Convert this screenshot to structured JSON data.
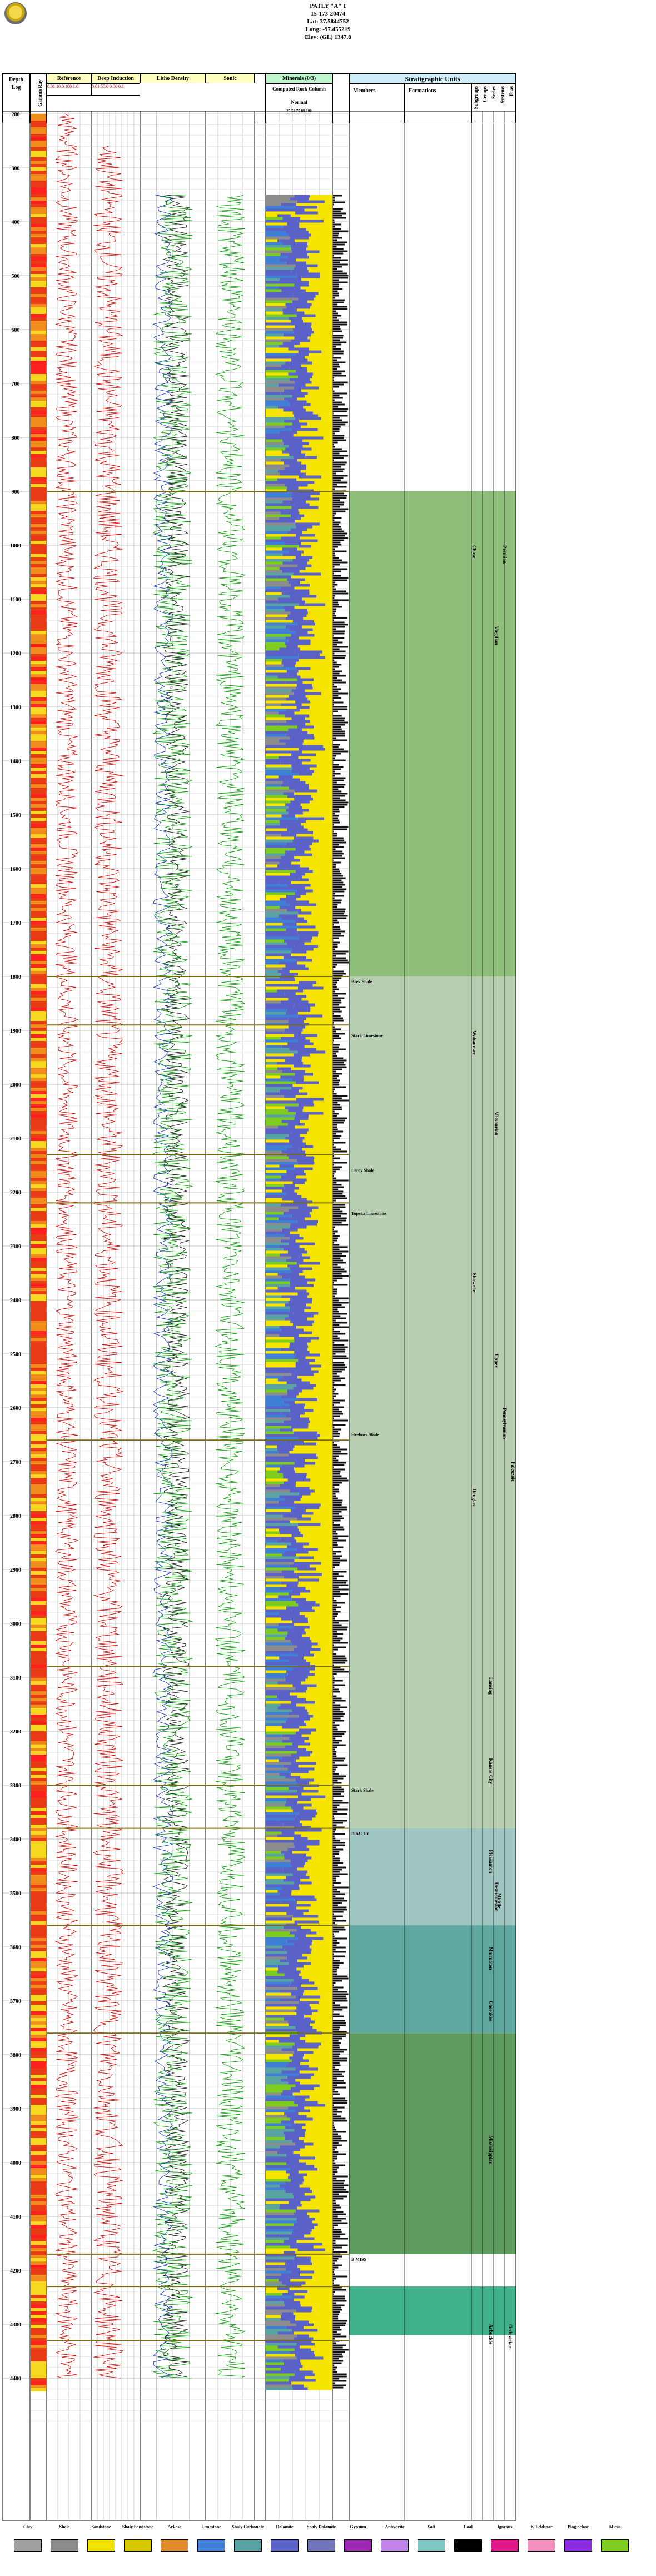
{
  "header": {
    "title": "PATLY \"A\" 1",
    "api": "15-173-20474",
    "lat": "Lat: 37.5844752",
    "long": "Long: -97.455219",
    "elev": "Elev: (GL) 1347.8"
  },
  "tracks": {
    "depth_label": "Depth",
    "log_label": "Log",
    "gamma_ray": "Gamma Ray",
    "reference": "Reference",
    "reference_units": "0.01    10.0    100    1.0",
    "deep_induction": "Deep Induction",
    "deep_induction_units": "0.01    50.0    0.00  0.1",
    "litho_density": "Litho Density",
    "sonic": "Sonic",
    "minerals": "Minerals (0/3)",
    "computed_rock": "Computed Rock Column",
    "normal": "Normal",
    "pct_ticks": "25    50    75    89   100",
    "stratigraphic_units": "Stratigraphic Units",
    "members": "Members",
    "formations": "Formations",
    "group_cols": [
      "Subgroups",
      "Groups",
      "Series",
      "Systems",
      "Eras"
    ]
  },
  "depths": [
    "200",
    "300",
    "400",
    "500",
    "600",
    "700",
    "800",
    "900",
    "1000",
    "1100",
    "1200",
    "1300",
    "1400",
    "1500",
    "1600",
    "1700",
    "1800",
    "1900",
    "2000",
    "2100",
    "2200",
    "2300",
    "2400",
    "2500",
    "2600",
    "2700",
    "2800",
    "2900",
    "3000",
    "3100",
    "3200",
    "3300",
    "3400",
    "3500",
    "3600",
    "3700",
    "3800",
    "3900",
    "4000",
    "4100",
    "4200",
    "4300",
    "4400"
  ],
  "units": [
    {
      "name": "Brek Shale",
      "depth": "1800"
    },
    {
      "name": "Stark Limestone",
      "depth": "1900"
    },
    {
      "name": "Leroy Shale",
      "depth": "2150"
    },
    {
      "name": "Topeka Limestone",
      "depth": "2230"
    },
    {
      "name": "Heebner Shale",
      "depth": "2640"
    },
    {
      "name": "Stark Shale",
      "depth": "3300"
    },
    {
      "name": "B KC TY",
      "depth": "3380"
    },
    {
      "name": "B MISS",
      "depth": "4170"
    }
  ],
  "group_labels": [
    "Chase",
    "Wabaunsee",
    "Shawnee",
    "Douglas",
    "Lansing",
    "Kansas City",
    "Pleasanton",
    "Marmaton",
    "Cherokee",
    "Mississippian",
    "Arbuckle"
  ],
  "era_labels": [
    "Permian",
    "Pennsylvanian",
    "Upper",
    "Middle",
    "Paleozoic",
    "Ordovician",
    "Virgilian",
    "Missourian",
    "Desmoinesian"
  ],
  "legend": [
    {
      "label": "Clay",
      "color": "#a0a0a0"
    },
    {
      "label": "Shale",
      "color": "#8c8c8c"
    },
    {
      "label": "Sandstone",
      "color": "#f5e400"
    },
    {
      "label": "Shaly Sandstone",
      "color": "#d9c800"
    },
    {
      "label": "Arkose",
      "color": "#e08a2c"
    },
    {
      "label": "Limestone",
      "color": "#3f7fd6"
    },
    {
      "label": "Shaly Carbonate",
      "color": "#5aa3a3"
    },
    {
      "label": "Dolomite",
      "color": "#5b62c7"
    },
    {
      "label": "Shaly Dolomite",
      "color": "#7074b8"
    },
    {
      "label": "Gypsum",
      "color": "#9c27b0"
    },
    {
      "label": "Anhydrite",
      "color": "#c084e8"
    },
    {
      "label": "Salt",
      "color": "#7ec7c0"
    },
    {
      "label": "Coal",
      "color": "#000000"
    },
    {
      "label": "Igneous",
      "color": "#e0178a"
    },
    {
      "label": "K-Feldspar",
      "color": "#f48fc0"
    },
    {
      "label": "Plagioclase",
      "color": "#8a2be2"
    },
    {
      "label": "Micas",
      "color": "#7fcc20"
    }
  ]
}
